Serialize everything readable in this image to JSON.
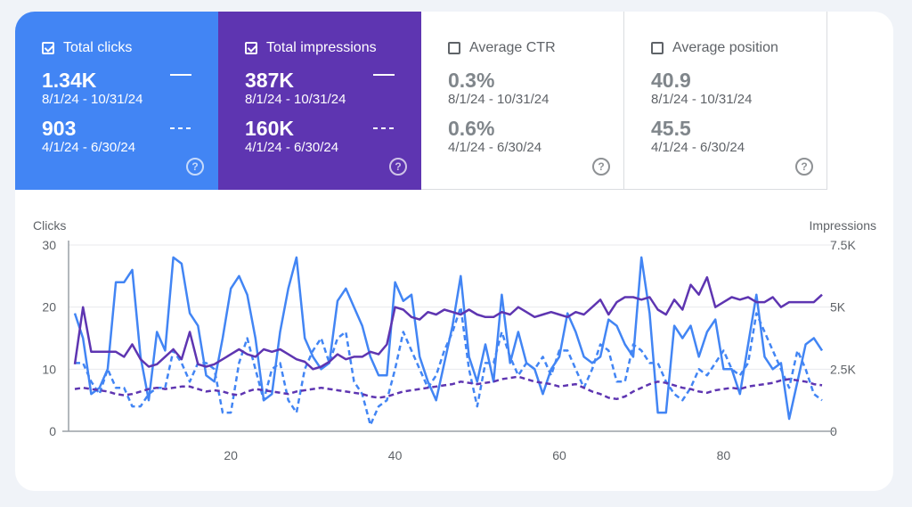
{
  "metrics": [
    {
      "label": "Total clicks",
      "checked": true,
      "value": "1.34K",
      "range": "8/1/24 - 10/31/24",
      "prev_value": "903",
      "prev_range": "4/1/24 - 6/30/24",
      "color": "#4285f4"
    },
    {
      "label": "Total impressions",
      "checked": true,
      "value": "387K",
      "range": "8/1/24 - 10/31/24",
      "prev_value": "160K",
      "prev_range": "4/1/24 - 6/30/24",
      "color": "#5e35b1"
    },
    {
      "label": "Average CTR",
      "checked": false,
      "value": "0.3%",
      "range": "8/1/24 - 10/31/24",
      "prev_value": "0.6%",
      "prev_range": "4/1/24 - 6/30/24"
    },
    {
      "label": "Average position",
      "checked": false,
      "value": "40.9",
      "range": "8/1/24 - 10/31/24",
      "prev_value": "45.5",
      "prev_range": "4/1/24 - 6/30/24"
    }
  ],
  "help_icon": "?",
  "chart_data": {
    "type": "line",
    "ylabel": "Clicks",
    "y2label": "Impressions",
    "ylim": [
      0,
      30
    ],
    "y2lim": [
      0,
      7500
    ],
    "yticks": [
      "0",
      "10",
      "20",
      "30"
    ],
    "y2ticks": [
      "0",
      "2.5K",
      "5K",
      "7.5K"
    ],
    "xticks": [
      20,
      40,
      60,
      80
    ],
    "xlim": [
      1,
      92
    ],
    "grid": true,
    "series": [
      {
        "metric": "Clicks",
        "period": "8/1/24 - 10/31/24",
        "axis": "left",
        "style": "solid",
        "color": "#4285f4",
        "values": [
          19,
          15,
          6,
          7,
          10,
          24,
          24,
          26,
          12,
          5,
          16,
          13,
          28,
          27,
          19,
          17,
          9,
          8,
          15,
          23,
          25,
          22,
          15,
          5,
          6,
          16,
          23,
          28,
          15,
          12,
          10,
          11,
          21,
          23,
          20,
          17,
          12,
          9,
          9,
          24,
          21,
          22,
          12,
          8,
          5,
          11,
          17,
          25,
          12,
          8,
          14,
          8,
          22,
          11,
          16,
          11,
          10,
          6,
          10,
          12,
          19,
          16,
          12,
          11,
          12,
          18,
          17,
          14,
          12,
          28,
          19,
          3,
          3,
          17,
          15,
          17,
          12,
          16,
          18,
          10,
          10,
          6,
          14,
          22,
          12,
          10,
          11,
          2,
          8,
          14,
          15,
          13
        ]
      },
      {
        "metric": "Clicks",
        "period": "4/1/24 - 6/30/24",
        "axis": "left",
        "style": "dashed",
        "color": "#4285f4",
        "values": [
          11,
          11,
          8,
          6,
          10,
          7,
          7,
          4,
          4,
          6,
          7,
          7,
          13,
          11,
          8,
          11,
          11,
          10,
          3,
          3,
          11,
          15,
          10,
          5,
          10,
          11,
          5,
          3,
          10,
          13,
          15,
          11,
          15,
          16,
          8,
          6,
          1,
          4,
          5,
          10,
          16,
          13,
          10,
          7,
          9,
          13,
          16,
          20,
          10,
          4,
          11,
          11,
          16,
          12,
          9,
          11,
          10,
          12,
          9,
          13,
          13,
          10,
          7,
          10,
          14,
          13,
          8,
          8,
          14,
          13,
          11,
          11,
          8,
          6,
          5,
          7,
          10,
          9,
          11,
          13,
          10,
          9,
          11,
          19,
          16,
          13,
          10,
          7,
          13,
          10,
          6,
          5
        ]
      },
      {
        "metric": "Impressions",
        "period": "8/1/24 - 10/31/24",
        "axis": "right",
        "style": "solid",
        "color": "#5e35b1",
        "values": [
          2700,
          5000,
          3200,
          3200,
          3200,
          3200,
          3000,
          3500,
          2900,
          2600,
          2700,
          3000,
          3300,
          2900,
          4000,
          2700,
          2600,
          2700,
          2900,
          3100,
          3300,
          3100,
          3000,
          3300,
          3200,
          3300,
          3100,
          2900,
          2800,
          2500,
          2600,
          2800,
          3100,
          2900,
          3000,
          3000,
          3200,
          3100,
          3500,
          5000,
          4900,
          4600,
          4500,
          4800,
          4700,
          4900,
          4800,
          4700,
          4900,
          4700,
          4600,
          4600,
          4800,
          4700,
          5000,
          4800,
          4600,
          4700,
          4800,
          4700,
          4600,
          4800,
          4700,
          5000,
          5300,
          4700,
          5200,
          5400,
          5400,
          5300,
          5400,
          4900,
          4700,
          5300,
          4900,
          5900,
          5500,
          6200,
          5000,
          5200,
          5400,
          5300,
          5400,
          5200,
          5200,
          5400,
          5000,
          5200,
          5200,
          5200,
          5200,
          5500
        ]
      },
      {
        "metric": "Impressions",
        "period": "4/1/24 - 6/30/24",
        "axis": "right",
        "style": "dashed",
        "color": "#5e35b1",
        "values": [
          1700,
          1750,
          1700,
          1650,
          1600,
          1500,
          1450,
          1500,
          1600,
          1700,
          1750,
          1700,
          1750,
          1800,
          1800,
          1700,
          1600,
          1650,
          1600,
          1500,
          1450,
          1600,
          1700,
          1650,
          1600,
          1550,
          1500,
          1600,
          1650,
          1700,
          1750,
          1700,
          1650,
          1600,
          1550,
          1500,
          1400,
          1350,
          1400,
          1500,
          1600,
          1650,
          1700,
          1750,
          1800,
          1850,
          1900,
          2000,
          1950,
          1900,
          1950,
          2000,
          2100,
          2150,
          2200,
          2100,
          2000,
          1950,
          1900,
          1800,
          1850,
          1900,
          1750,
          1600,
          1500,
          1350,
          1300,
          1400,
          1600,
          1750,
          1900,
          2000,
          1950,
          1850,
          1750,
          1700,
          1600,
          1550,
          1650,
          1700,
          1750,
          1700,
          1800,
          1850,
          1900,
          1950,
          2050,
          2100,
          2050,
          2000,
          1900,
          1850
        ]
      }
    ]
  }
}
